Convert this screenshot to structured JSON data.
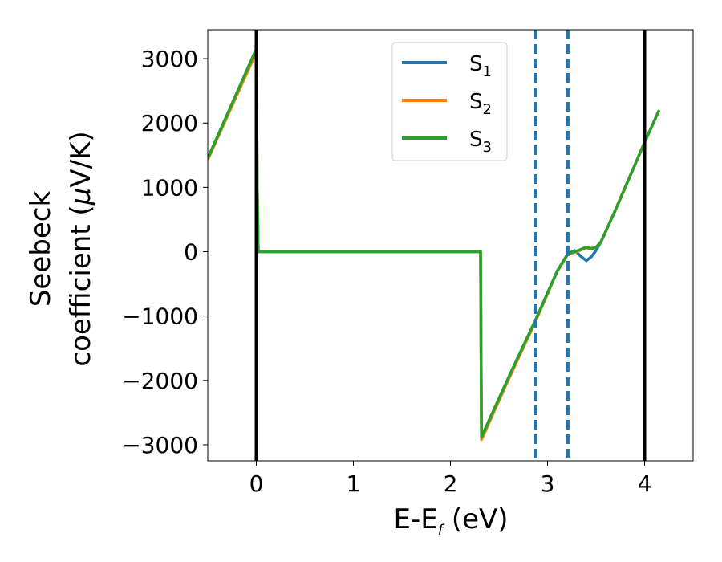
{
  "chart_data": {
    "type": "line",
    "xlabel": "E-E",
    "xlabel_sub": "f",
    "xlabel_unit": " (eV)",
    "ylabel_line1": "Seebeck",
    "ylabel_line2_pre": "coefficient  (",
    "ylabel_mu": "μ",
    "ylabel_line2_post": "V/K)",
    "xlim": [
      -0.5,
      4.5
    ],
    "ylim": [
      -3250,
      3450
    ],
    "xticks": [
      0,
      1,
      2,
      3,
      4
    ],
    "xtick_labels": [
      "0",
      "1",
      "2",
      "3",
      "4"
    ],
    "yticks": [
      3000,
      2000,
      1000,
      0,
      -1000,
      -2000,
      -3000
    ],
    "ytick_labels": [
      "3000",
      "2000",
      "1000",
      "0",
      "−1000",
      "−2000",
      "−3000"
    ],
    "grid": false,
    "legend_position": "top-center",
    "vlines_solid": [
      0,
      4
    ],
    "vlines_dashed": [
      2.88,
      3.21
    ],
    "series": [
      {
        "name": "S",
        "sub": "1",
        "color": "#1f77b4",
        "x": [
          -0.5,
          0.0,
          0.01,
          0.02,
          2.3,
          2.31,
          2.32,
          2.6,
          2.88,
          3.1,
          3.21,
          3.28,
          3.35,
          3.4,
          3.45,
          3.5,
          3.55,
          3.7,
          4.0,
          4.15
        ],
        "y": [
          1450,
          3150,
          1000,
          0,
          0,
          0,
          -2880,
          -1950,
          -1050,
          -300,
          -30,
          20,
          -80,
          -140,
          -80,
          20,
          150,
          650,
          1700,
          2200
        ]
      },
      {
        "name": "S",
        "sub": "2",
        "color": "#ff7f0e",
        "x": [
          -0.5,
          0.0,
          0.01,
          0.02,
          2.3,
          2.31,
          2.32,
          2.6,
          2.88,
          3.1,
          3.21,
          3.3,
          3.4,
          3.45,
          3.5,
          3.55,
          3.7,
          4.0,
          4.15
        ],
        "y": [
          1430,
          3100,
          1000,
          0,
          0,
          0,
          -2920,
          -1980,
          -1070,
          -310,
          -40,
          0,
          60,
          40,
          70,
          150,
          650,
          1700,
          2200
        ]
      },
      {
        "name": "S",
        "sub": "3",
        "color": "#2ca02c",
        "x": [
          -0.5,
          0.0,
          0.01,
          0.02,
          2.3,
          2.31,
          2.32,
          2.6,
          2.88,
          3.1,
          3.21,
          3.3,
          3.4,
          3.45,
          3.5,
          3.55,
          3.7,
          4.0,
          4.15
        ],
        "y": [
          1450,
          3150,
          1000,
          0,
          0,
          0,
          -2880,
          -1950,
          -1050,
          -300,
          -30,
          10,
          70,
          50,
          70,
          150,
          650,
          1700,
          2200
        ]
      }
    ]
  }
}
